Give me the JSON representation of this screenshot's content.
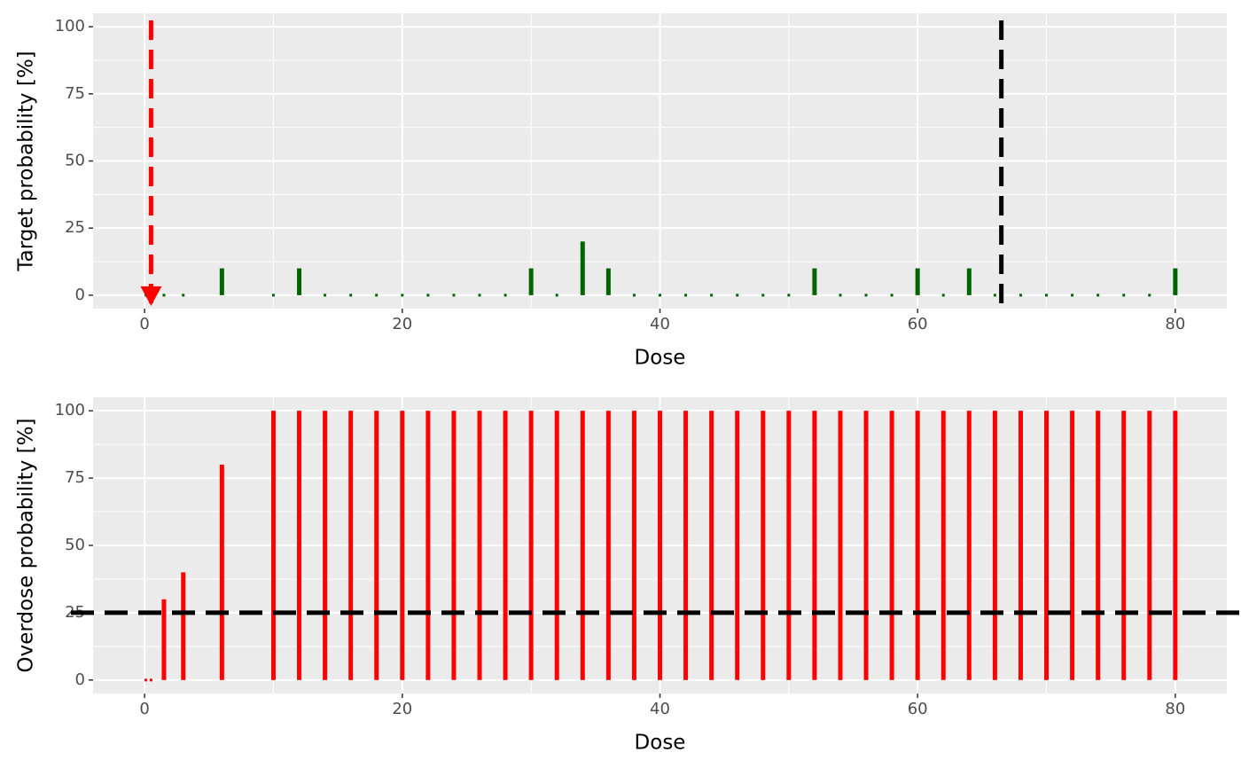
{
  "chart_data": [
    {
      "type": "bar",
      "x_label": "Dose",
      "y_label": "Target probability [%]",
      "x": [
        0.1,
        0.5,
        1.5,
        3,
        6,
        10,
        12,
        14,
        16,
        18,
        20,
        22,
        24,
        26,
        28,
        30,
        32,
        34,
        36,
        38,
        40,
        42,
        44,
        46,
        48,
        50,
        52,
        54,
        56,
        58,
        60,
        62,
        64,
        66,
        68,
        70,
        72,
        74,
        76,
        78,
        80
      ],
      "values": [
        0,
        0,
        0,
        0,
        10,
        0,
        10,
        0,
        0,
        0,
        0,
        0,
        0,
        0,
        0,
        10,
        0,
        20,
        10,
        0,
        0,
        0,
        0,
        0,
        0,
        0,
        10,
        0,
        0,
        0,
        10,
        0,
        10,
        0,
        0,
        0,
        0,
        0,
        0,
        0,
        10
      ],
      "color": "#006400",
      "xlim": [
        -4,
        84
      ],
      "xticks": [
        0,
        20,
        40,
        60,
        80
      ],
      "ylim": [
        -5,
        105
      ],
      "yticks": [
        0,
        25,
        50,
        75,
        100
      ],
      "grid": true,
      "vlines": [
        {
          "value": 0.5,
          "color": "#ff0000"
        },
        {
          "value": 66.5,
          "color": "#000000"
        }
      ],
      "marker": {
        "x": 0.5,
        "y": 0,
        "color": "#ff0000"
      }
    },
    {
      "type": "bar",
      "x_label": "Dose",
      "y_label": "Overdose probability [%]",
      "x": [
        0.1,
        0.5,
        1.5,
        3,
        6,
        10,
        12,
        14,
        16,
        18,
        20,
        22,
        24,
        26,
        28,
        30,
        32,
        34,
        36,
        38,
        40,
        42,
        44,
        46,
        48,
        50,
        52,
        54,
        56,
        58,
        60,
        62,
        64,
        66,
        68,
        70,
        72,
        74,
        76,
        78,
        80
      ],
      "values": [
        0,
        0,
        30,
        40,
        80,
        100,
        100,
        100,
        100,
        100,
        100,
        100,
        100,
        100,
        100,
        100,
        100,
        100,
        100,
        100,
        100,
        100,
        100,
        100,
        100,
        100,
        100,
        100,
        100,
        100,
        100,
        100,
        100,
        100,
        100,
        100,
        100,
        100,
        100,
        100,
        100
      ],
      "color": "#ff0000",
      "xlim": [
        -4,
        84
      ],
      "xticks": [
        0,
        20,
        40,
        60,
        80
      ],
      "ylim": [
        -5,
        105
      ],
      "yticks": [
        0,
        25,
        50,
        75,
        100
      ],
      "grid": true,
      "hlines": [
        {
          "value": 25,
          "color": "#000000"
        }
      ]
    }
  ]
}
